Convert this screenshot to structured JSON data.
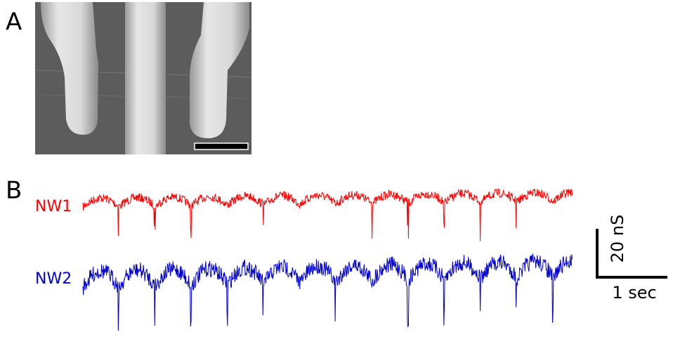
{
  "panel_a": {
    "label": "A"
  },
  "panel_b": {
    "label": "B",
    "traces": [
      {
        "name": "NW1",
        "color": "#ff0000"
      },
      {
        "name": "NW2",
        "color": "#0000cc"
      }
    ],
    "scale_bar": {
      "vertical": "20 nS",
      "horizontal": "1 sec"
    }
  }
}
